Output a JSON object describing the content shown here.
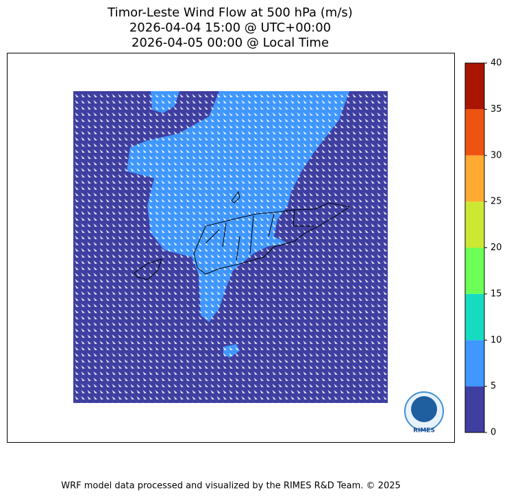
{
  "title_lines": [
    "Timor-Leste Wind Flow at 500 hPa (m/s)",
    "2026-04-04 15:00 @ UTC+00:00",
    "2026-04-05 00:00 @ Local Time"
  ],
  "colorbar": {
    "ticks": [
      0,
      5,
      10,
      15,
      20,
      25,
      30,
      35,
      40
    ],
    "colors": [
      "#3f3fa1",
      "#3f97ff",
      "#15dcc0",
      "#6cff58",
      "#cde833",
      "#ffab33",
      "#ef5311",
      "#a81500"
    ]
  },
  "logo_text": "RIMES",
  "footer": "WRF model data processed and visualized by the RIMES R&D Team. © 2025"
}
